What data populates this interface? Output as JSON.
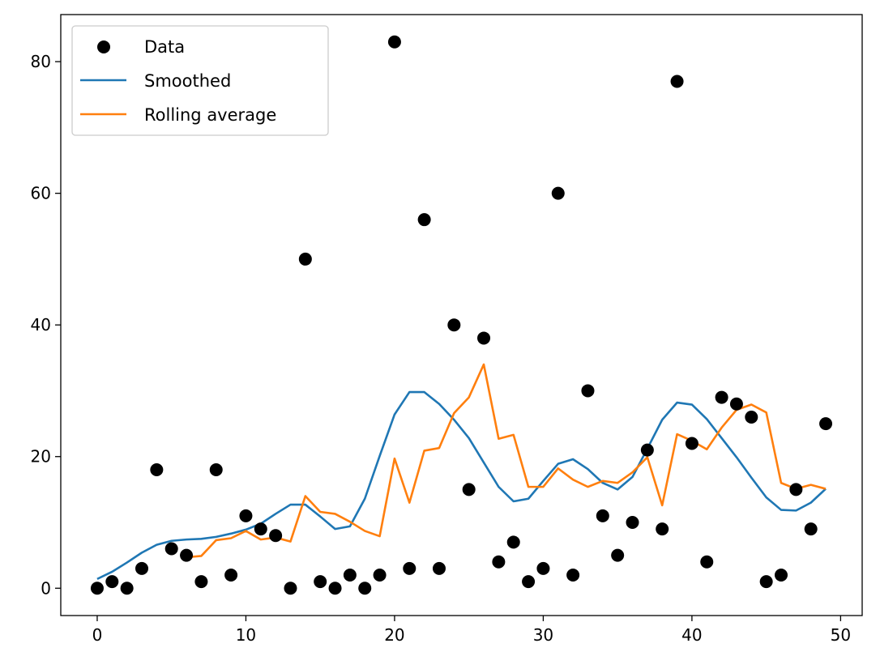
{
  "chart_data": {
    "type": "scatter",
    "title": "",
    "xlabel": "",
    "ylabel": "",
    "xlim": [
      -2.45,
      51.45
    ],
    "ylim": [
      -4.15,
      87.15
    ],
    "x_ticks": [
      "0",
      "10",
      "20",
      "30",
      "40",
      "50"
    ],
    "y_ticks": [
      "0",
      "20",
      "40",
      "60",
      "80"
    ],
    "grid": false,
    "legend_position": "top-left",
    "legend": [
      "Data",
      "Smoothed",
      "Rolling average"
    ],
    "colors": {
      "data": "#000000",
      "smoothed": "#1f77b4",
      "rolling": "#ff7f0e"
    },
    "x": [
      0,
      1,
      2,
      3,
      4,
      5,
      6,
      7,
      8,
      9,
      10,
      11,
      12,
      13,
      14,
      15,
      16,
      17,
      18,
      19,
      20,
      21,
      22,
      23,
      24,
      25,
      26,
      27,
      28,
      29,
      30,
      31,
      32,
      33,
      34,
      35,
      36,
      37,
      38,
      39,
      40,
      41,
      42,
      43,
      44,
      45,
      46,
      47,
      48,
      49
    ],
    "series": [
      {
        "name": "Data",
        "kind": "scatter",
        "values": [
          0,
          1,
          0,
          3,
          18,
          6,
          5,
          1,
          18,
          2,
          11,
          9,
          8,
          0,
          50,
          1,
          0,
          2,
          0,
          2,
          83,
          3,
          56,
          3,
          40,
          15,
          38,
          4,
          7,
          1,
          3,
          60,
          2,
          30,
          11,
          5,
          10,
          21,
          9,
          77,
          22,
          4,
          29,
          28,
          26,
          1,
          2,
          15,
          9,
          25
        ]
      },
      {
        "name": "Smoothed",
        "kind": "line",
        "values": [
          1.4,
          2.5,
          3.9,
          5.4,
          6.6,
          7.2,
          7.4,
          7.5,
          7.8,
          8.3,
          8.9,
          9.8,
          11.3,
          12.7,
          12.7,
          10.9,
          9.0,
          9.4,
          13.6,
          20.1,
          26.4,
          29.8,
          29.8,
          28.0,
          25.6,
          22.8,
          19.1,
          15.4,
          13.2,
          13.6,
          16.3,
          18.9,
          19.6,
          18.1,
          16.0,
          15.0,
          16.9,
          21.2,
          25.6,
          28.2,
          27.9,
          25.7,
          22.8,
          19.9,
          16.8,
          13.8,
          11.9,
          11.8,
          13.0,
          15.1
        ]
      },
      {
        "name": "Rolling average",
        "kind": "line",
        "values": [
          null,
          null,
          null,
          null,
          null,
          null,
          4.7,
          4.9,
          7.3,
          7.6,
          8.7,
          7.4,
          7.7,
          7.1,
          14.0,
          11.6,
          11.3,
          10.1,
          8.7,
          7.9,
          19.7,
          13.0,
          20.9,
          21.3,
          26.6,
          29.0,
          34.0,
          22.7,
          23.3,
          15.4,
          15.4,
          18.2,
          16.5,
          15.4,
          16.3,
          16.0,
          17.6,
          19.9,
          12.6,
          23.4,
          22.4,
          21.1,
          24.4,
          27.1,
          27.9,
          26.7,
          16.0,
          15.1,
          15.7,
          15.1
        ]
      }
    ]
  }
}
